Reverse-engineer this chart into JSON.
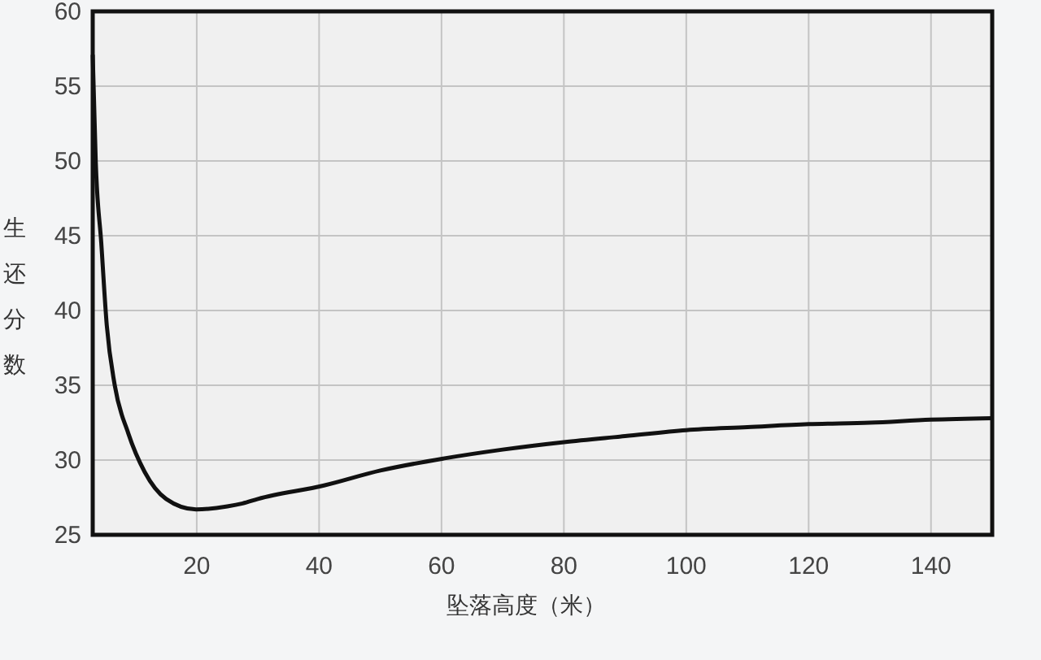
{
  "chart_data": {
    "type": "line",
    "xlabel": "坠落高度（米）",
    "ylabel": "生还分数",
    "series": [
      {
        "color": "#111111",
        "x": [
          3,
          3.5,
          4.4,
          5.3,
          6.6,
          8.8,
          11.5,
          15,
          19.9,
          25,
          27.5,
          30,
          40.8,
          50,
          60.3,
          70,
          80,
          90,
          100,
          110,
          120,
          130,
          140,
          150
        ],
        "values": [
          57.1,
          49.9,
          44.5,
          39,
          35,
          31.8,
          29.2,
          27.4,
          26.7,
          26.9,
          27.1,
          27.4,
          28.3,
          29.3,
          30.1,
          30.7,
          31.2,
          31.6,
          32,
          32.2,
          32.4,
          32.5,
          32.7,
          32.8
        ]
      }
    ],
    "xlim": [
      3,
      150
    ],
    "xticks": [
      20,
      40,
      60,
      80,
      100,
      120,
      140
    ],
    "ylim": [
      25,
      60
    ],
    "yticks": [
      25,
      30,
      35,
      40,
      45,
      50,
      55,
      60
    ],
    "grid": true
  }
}
